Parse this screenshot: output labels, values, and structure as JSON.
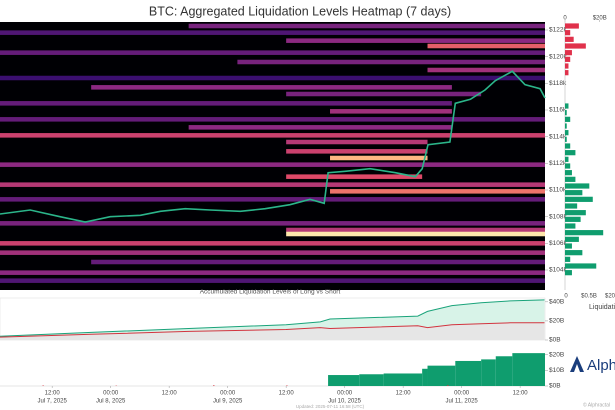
{
  "chart_data": [
    {
      "type": "heatmap",
      "title": "BTC: Aggregated Liquidation Levels Heatmap (7 days)",
      "xlim": [
        1.3,
        113.1
      ],
      "ylim": [
        102.5,
        122.6
      ],
      "yticks": [
        {
          "value": 104,
          "label": "$104k"
        },
        {
          "value": 106,
          "label": "$106k"
        },
        {
          "value": 108,
          "label": "$108k"
        },
        {
          "value": 110,
          "label": "$110k"
        },
        {
          "value": 112,
          "label": "$112k"
        },
        {
          "value": 114,
          "label": "$114k"
        },
        {
          "value": 116,
          "label": "$116k"
        },
        {
          "value": 118,
          "label": "$118k"
        },
        {
          "value": 120,
          "label": "$120k"
        },
        {
          "value": 122,
          "label": "$122k"
        }
      ],
      "colorscale": [
        "#000004",
        "#3b0f70",
        "#8c2981",
        "#de4968",
        "#fe9f6d",
        "#fcfdbf"
      ],
      "bands": [
        {
          "y": 122.3,
          "x0": 40,
          "x1": 113.1,
          "value": 0.35
        },
        {
          "y": 121.8,
          "x0": 1.3,
          "x1": 113.1,
          "value": 0.25
        },
        {
          "y": 121.2,
          "x0": 60,
          "x1": 113.1,
          "value": 0.4
        },
        {
          "y": 120.8,
          "x0": 89,
          "x1": 113.1,
          "value": 0.65
        },
        {
          "y": 120.3,
          "x0": 1.3,
          "x1": 113.1,
          "value": 0.3
        },
        {
          "y": 119.6,
          "x0": 50,
          "x1": 113.1,
          "value": 0.35
        },
        {
          "y": 119.0,
          "x0": 89,
          "x1": 113.1,
          "value": 0.45
        },
        {
          "y": 118.4,
          "x0": 1.3,
          "x1": 113.1,
          "value": 0.2
        },
        {
          "y": 117.7,
          "x0": 20,
          "x1": 94,
          "value": 0.4
        },
        {
          "y": 117.2,
          "x0": 60,
          "x1": 100,
          "value": 0.35
        },
        {
          "y": 116.5,
          "x0": 1.3,
          "x1": 94,
          "value": 0.3
        },
        {
          "y": 115.9,
          "x0": 69,
          "x1": 94,
          "value": 0.45
        },
        {
          "y": 115.3,
          "x0": 1.3,
          "x1": 113.1,
          "value": 0.3
        },
        {
          "y": 114.7,
          "x0": 40,
          "x1": 94,
          "value": 0.4
        },
        {
          "y": 114.1,
          "x0": 1.3,
          "x1": 113.1,
          "value": 0.55
        },
        {
          "y": 113.6,
          "x0": 60,
          "x1": 89,
          "value": 0.5
        },
        {
          "y": 112.9,
          "x0": 60,
          "x1": 89,
          "value": 0.55
        },
        {
          "y": 112.4,
          "x0": 69,
          "x1": 89,
          "value": 0.85
        },
        {
          "y": 111.9,
          "x0": 1.3,
          "x1": 113.1,
          "value": 0.4
        },
        {
          "y": 111.0,
          "x0": 60,
          "x1": 87.9,
          "value": 0.6
        },
        {
          "y": 110.4,
          "x0": 1.3,
          "x1": 113.1,
          "value": 0.5
        },
        {
          "y": 109.9,
          "x0": 69,
          "x1": 113.1,
          "value": 0.7
        },
        {
          "y": 109.3,
          "x0": 1.3,
          "x1": 113.1,
          "value": 0.3
        },
        {
          "y": 107.5,
          "x0": 1.3,
          "x1": 113.1,
          "value": 0.35
        },
        {
          "y": 107.0,
          "x0": 60,
          "x1": 113.1,
          "value": 0.5
        },
        {
          "y": 106.7,
          "x0": 60,
          "x1": 113.1,
          "value": 0.95
        },
        {
          "y": 106.0,
          "x0": 1.3,
          "x1": 113.1,
          "value": 0.55
        },
        {
          "y": 105.3,
          "x0": 1.3,
          "x1": 113.1,
          "value": 0.45
        },
        {
          "y": 104.6,
          "x0": 20,
          "x1": 113.1,
          "value": 0.3
        },
        {
          "y": 103.8,
          "x0": 1.3,
          "x1": 113.1,
          "value": 0.4
        },
        {
          "y": 103.2,
          "x0": 1.3,
          "x1": 113.1,
          "value": 0.25
        }
      ],
      "series": [
        {
          "color": "#2bb58a",
          "x": [
            1.3,
            7.5,
            13.6,
            18.8,
            23.9,
            30.1,
            34.2,
            39.3,
            44.4,
            50.6,
            55.7,
            60.8,
            64.9,
            67.8,
            68.6,
            72.1,
            77.2,
            82.4,
            86.5,
            87.9,
            89.1,
            93.6,
            94.7,
            97.8,
            100.8,
            102.9,
            106.4,
            109.0,
            112.1,
            113.1
          ],
          "values": [
            108.2,
            108.5,
            108.0,
            107.6,
            108.0,
            108.1,
            108.4,
            108.6,
            108.5,
            108.4,
            108.6,
            108.9,
            109.3,
            109.0,
            111.3,
            111.4,
            111.6,
            111.3,
            111.0,
            111.6,
            113.4,
            113.6,
            116.5,
            116.8,
            117.5,
            118.2,
            118.9,
            117.9,
            117.6,
            116.9
          ]
        }
      ]
    },
    {
      "type": "hbar",
      "xlim": [
        0,
        28.8
      ],
      "ylim": [
        102.5,
        122.6
      ],
      "xticks": [
        0,
        {
          "value": 20,
          "label": "$20B"
        }
      ],
      "bottom_labels": [
        "0",
        "$0.5B",
        "$20B"
      ],
      "x_label": "Liquidations",
      "series": [
        {
          "color": "#e0314b",
          "y": [
            122.3,
            121.8,
            121.3,
            120.8,
            120.3,
            119.8,
            119.3,
            118.8
          ],
          "values": [
            8,
            3,
            5,
            12,
            4,
            3,
            2,
            2
          ]
        },
        {
          "color": "#0f9d6e",
          "y": [
            116.3,
            115.8,
            115.3,
            114.8,
            114.3,
            113.8,
            113.3,
            112.8,
            112.3,
            111.8,
            111.3,
            110.8,
            110.3,
            109.8,
            109.3,
            108.8,
            108.3,
            107.8,
            107.3,
            106.8,
            106.3,
            105.8,
            105.3,
            104.8,
            104.3,
            103.8
          ],
          "values": [
            2,
            1,
            3,
            1,
            2,
            1,
            3,
            6,
            2,
            3,
            4,
            6,
            14,
            10,
            16,
            7,
            12,
            9,
            6,
            22,
            8,
            4,
            10,
            3,
            18,
            4
          ]
        }
      ]
    },
    {
      "type": "line",
      "title": "Accumulated Liquidation Levels of Long vs Short",
      "xlim": [
        1.3,
        113.1
      ],
      "ylim": [
        0,
        44
      ],
      "yticks": [
        {
          "value": 0,
          "label": "$0B"
        },
        {
          "value": 20,
          "label": "$20B"
        },
        {
          "value": 40,
          "label": "$40B"
        }
      ],
      "series": [
        {
          "color": "#1aa37a",
          "fill": "#d8f3e8",
          "x": [
            1.3,
            20,
            40,
            60,
            67,
            69,
            87,
            89,
            94,
            100,
            106,
            113
          ],
          "values": [
            4,
            8,
            12,
            16,
            19,
            22,
            25,
            30,
            36,
            39,
            41,
            42
          ]
        },
        {
          "color": "#d2343f",
          "fill": "#e6e6e6",
          "x": [
            1.3,
            20,
            40,
            60,
            67,
            69,
            87,
            89,
            94,
            100,
            106,
            113
          ],
          "values": [
            3,
            6,
            9,
            11,
            13,
            12,
            15,
            13,
            16,
            17,
            18,
            18
          ]
        }
      ]
    },
    {
      "type": "step",
      "xlim": [
        1.3,
        113.1
      ],
      "ylim": [
        0,
        23
      ],
      "yticks": [
        {
          "value": 0,
          "label": "$0B"
        },
        {
          "value": 10,
          "label": "$10B"
        },
        {
          "value": 20,
          "label": "$20B"
        }
      ],
      "xticks": [
        {
          "value": 12,
          "label": "12:00",
          "date": "Jul 7, 2025"
        },
        {
          "value": 24,
          "label": "00:00",
          "date": "Jul 8, 2025"
        },
        {
          "value": 36,
          "label": "12:00"
        },
        {
          "value": 48,
          "label": "00:00",
          "date": "Jul 9, 2025"
        },
        {
          "value": 60,
          "label": "12:00"
        },
        {
          "value": 72,
          "label": "00:00",
          "date": "Jul 10, 2025"
        },
        {
          "value": 84,
          "label": "12:00"
        },
        {
          "value": 96,
          "label": "00:00",
          "date": "Jul 11, 2025"
        },
        {
          "value": 108,
          "label": "12:00"
        }
      ],
      "series": [
        {
          "color": "#0f9d6e",
          "x": [
            68.6,
            75,
            80,
            87.9,
            89,
            94.7,
            100,
            103,
            106.4
          ],
          "values": [
            7,
            7.5,
            8,
            11,
            13,
            16,
            17,
            19,
            21
          ]
        },
        {
          "color": "#d2343f",
          "x": [
            10,
            25,
            45,
            60,
            93
          ],
          "values": [
            0.3,
            0.2,
            0.4,
            0.3,
            0.5
          ]
        }
      ],
      "footnote": "Updated: 2025-07-11 16:58 (UTC)",
      "logo": "Alphractal",
      "credit": "© Alphractal"
    }
  ]
}
